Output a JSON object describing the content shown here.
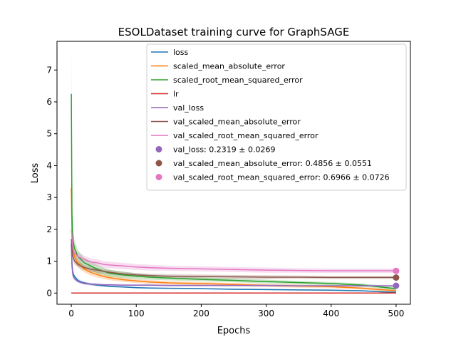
{
  "chart_data": {
    "type": "line",
    "title": "ESOLDataset training curve for GraphSAGE",
    "xlabel": "Epochs",
    "ylabel": "Loss",
    "xlim": [
      -22,
      522
    ],
    "ylim": [
      -0.35,
      7.9
    ],
    "xticks": [
      0,
      100,
      200,
      300,
      400,
      500
    ],
    "yticks": [
      0,
      1,
      2,
      3,
      4,
      5,
      6,
      7
    ],
    "grid": false,
    "legend_position": "top-right",
    "series": [
      {
        "name": "loss",
        "color": "#1f77b4",
        "x": [
          0,
          1,
          2,
          3,
          5,
          8,
          10,
          15,
          20,
          30,
          40,
          50,
          60,
          80,
          100,
          120,
          150,
          200,
          250,
          300,
          350,
          400,
          450,
          480,
          500
        ],
        "y": [
          1.55,
          0.95,
          0.7,
          0.6,
          0.52,
          0.45,
          0.4,
          0.35,
          0.32,
          0.28,
          0.25,
          0.23,
          0.21,
          0.19,
          0.17,
          0.16,
          0.15,
          0.14,
          0.12,
          0.11,
          0.1,
          0.09,
          0.07,
          0.04,
          0.03
        ],
        "band": [
          0.2,
          0.1,
          0.08,
          0.07,
          0.06,
          0.05,
          0.05,
          0.04,
          0.04,
          0.03,
          0.03,
          0.03,
          0.03,
          0.02,
          0.02,
          0.02,
          0.02,
          0.02,
          0.02,
          0.02,
          0.02,
          0.02,
          0.02,
          0.02,
          0.02
        ]
      },
      {
        "name": "scaled_mean_absolute_error",
        "color": "#ff7f0e",
        "x": [
          0,
          1,
          2,
          3,
          5,
          8,
          10,
          15,
          20,
          30,
          40,
          50,
          60,
          80,
          100,
          120,
          150,
          200,
          250,
          300,
          350,
          400,
          450,
          480,
          500
        ],
        "y": [
          3.3,
          1.8,
          1.45,
          1.3,
          1.15,
          1.0,
          0.95,
          0.85,
          0.75,
          0.65,
          0.58,
          0.52,
          0.48,
          0.42,
          0.38,
          0.35,
          0.32,
          0.3,
          0.27,
          0.24,
          0.22,
          0.2,
          0.15,
          0.1,
          0.08
        ],
        "band": [
          0.5,
          0.3,
          0.2,
          0.18,
          0.15,
          0.15,
          0.12,
          0.12,
          0.1,
          0.1,
          0.09,
          0.08,
          0.08,
          0.07,
          0.06,
          0.06,
          0.05,
          0.05,
          0.05,
          0.05,
          0.05,
          0.05,
          0.04,
          0.04,
          0.04
        ]
      },
      {
        "name": "scaled_root_mean_squared_error",
        "color": "#2ca02c",
        "x": [
          0,
          1,
          2,
          3,
          5,
          8,
          10,
          15,
          20,
          30,
          40,
          50,
          60,
          80,
          100,
          120,
          150,
          200,
          250,
          300,
          350,
          400,
          450,
          480,
          500
        ],
        "y": [
          6.25,
          2.5,
          1.9,
          1.6,
          1.4,
          1.25,
          1.15,
          1.05,
          0.95,
          0.85,
          0.75,
          0.68,
          0.62,
          0.57,
          0.53,
          0.5,
          0.47,
          0.43,
          0.4,
          0.36,
          0.33,
          0.3,
          0.25,
          0.18,
          0.14
        ],
        "band": [
          1.3,
          0.6,
          0.35,
          0.3,
          0.25,
          0.22,
          0.2,
          0.18,
          0.16,
          0.15,
          0.14,
          0.12,
          0.11,
          0.1,
          0.09,
          0.08,
          0.07,
          0.06,
          0.06,
          0.06,
          0.05,
          0.05,
          0.05,
          0.05,
          0.05
        ]
      },
      {
        "name": "lr",
        "color": "#d62728",
        "x": [
          0,
          500
        ],
        "y": [
          0.001,
          0.001
        ],
        "band": [
          0,
          0
        ]
      },
      {
        "name": "val_loss",
        "color": "#9467bd",
        "x": [
          0,
          1,
          2,
          3,
          5,
          8,
          10,
          15,
          20,
          30,
          40,
          50,
          60,
          80,
          100,
          120,
          150,
          200,
          250,
          300,
          350,
          400,
          450,
          480,
          500
        ],
        "y": [
          1.5,
          0.85,
          0.62,
          0.52,
          0.45,
          0.4,
          0.37,
          0.33,
          0.3,
          0.28,
          0.27,
          0.26,
          0.26,
          0.25,
          0.25,
          0.25,
          0.24,
          0.24,
          0.24,
          0.24,
          0.23,
          0.23,
          0.23,
          0.23,
          0.23
        ],
        "band": [
          0.2,
          0.1,
          0.08,
          0.06,
          0.05,
          0.05,
          0.05,
          0.04,
          0.04,
          0.04,
          0.04,
          0.03,
          0.03,
          0.03,
          0.03,
          0.03,
          0.03,
          0.03,
          0.03,
          0.03,
          0.03,
          0.03,
          0.03,
          0.03,
          0.03
        ]
      },
      {
        "name": "val_scaled_mean_absolute_error",
        "color": "#8c564b",
        "x": [
          0,
          1,
          2,
          3,
          5,
          8,
          10,
          15,
          20,
          30,
          40,
          50,
          60,
          80,
          100,
          120,
          150,
          200,
          250,
          300,
          350,
          400,
          450,
          480,
          500
        ],
        "y": [
          1.7,
          1.4,
          1.2,
          1.1,
          1.0,
          0.95,
          0.9,
          0.85,
          0.8,
          0.75,
          0.72,
          0.68,
          0.65,
          0.6,
          0.57,
          0.55,
          0.53,
          0.52,
          0.51,
          0.5,
          0.5,
          0.49,
          0.49,
          0.49,
          0.49
        ],
        "band": [
          0.2,
          0.15,
          0.12,
          0.1,
          0.1,
          0.1,
          0.09,
          0.09,
          0.08,
          0.08,
          0.08,
          0.07,
          0.07,
          0.07,
          0.06,
          0.06,
          0.06,
          0.06,
          0.06,
          0.06,
          0.05,
          0.05,
          0.05,
          0.05,
          0.05
        ]
      },
      {
        "name": "val_scaled_root_mean_squared_error",
        "color": "#e377c2",
        "x": [
          0,
          1,
          2,
          3,
          5,
          8,
          10,
          15,
          20,
          30,
          40,
          50,
          60,
          80,
          100,
          120,
          150,
          200,
          250,
          300,
          350,
          400,
          450,
          480,
          500
        ],
        "y": [
          2.0,
          1.8,
          1.5,
          1.35,
          1.25,
          1.2,
          1.15,
          1.1,
          1.05,
          0.98,
          0.95,
          0.9,
          0.88,
          0.85,
          0.82,
          0.8,
          0.78,
          0.76,
          0.74,
          0.72,
          0.71,
          0.7,
          0.7,
          0.7,
          0.7
        ],
        "band": [
          0.25,
          0.2,
          0.18,
          0.15,
          0.14,
          0.14,
          0.13,
          0.12,
          0.12,
          0.11,
          0.11,
          0.1,
          0.1,
          0.1,
          0.09,
          0.09,
          0.08,
          0.08,
          0.08,
          0.08,
          0.07,
          0.07,
          0.07,
          0.07,
          0.07
        ]
      }
    ],
    "final_points": [
      {
        "label": "val_loss: 0.2319 ± 0.0269",
        "x": 500,
        "y": 0.2319,
        "color": "#9467bd"
      },
      {
        "label": "val_scaled_mean_absolute_error: 0.4856 ± 0.0551",
        "x": 500,
        "y": 0.4856,
        "color": "#8c564b"
      },
      {
        "label": "val_scaled_root_mean_squared_error: 0.6966 ± 0.0726",
        "x": 500,
        "y": 0.6966,
        "color": "#e377c2"
      }
    ]
  }
}
